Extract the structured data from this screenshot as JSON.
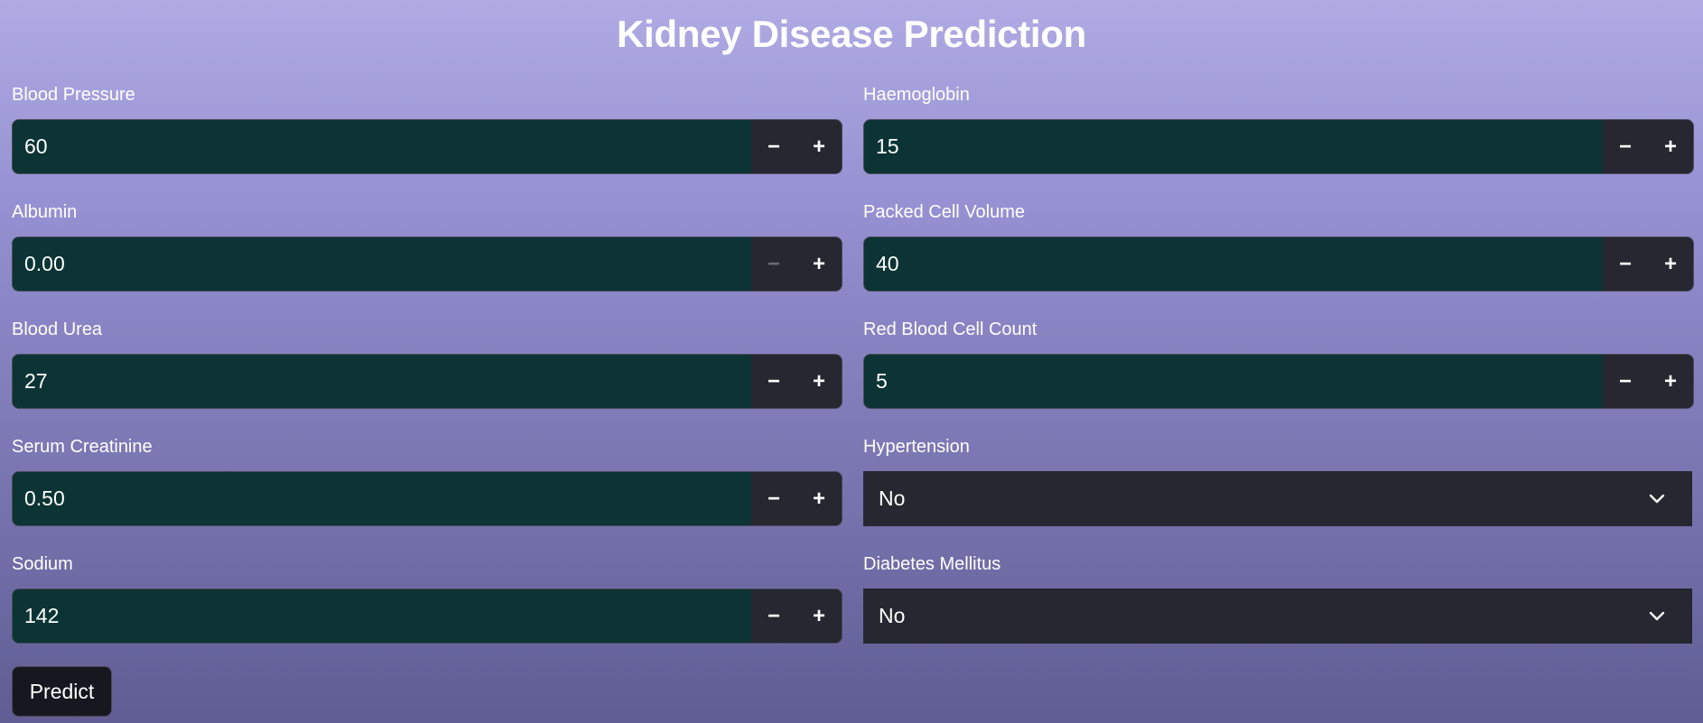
{
  "page": {
    "title": "Kidney Disease Prediction"
  },
  "left_fields": [
    {
      "label": "Blood Pressure",
      "value": "60"
    },
    {
      "label": "Albumin",
      "value": "0.00"
    },
    {
      "label": "Blood Urea",
      "value": "27"
    },
    {
      "label": "Serum Creatinine",
      "value": "0.50"
    },
    {
      "label": "Sodium",
      "value": "142"
    }
  ],
  "right_fields": [
    {
      "label": "Haemoglobin",
      "value": "15"
    },
    {
      "label": "Packed Cell Volume",
      "value": "40"
    },
    {
      "label": "Red Blood Cell Count",
      "value": "5"
    }
  ],
  "selects": [
    {
      "label": "Hypertension",
      "value": "No"
    },
    {
      "label": "Diabetes Mellitus",
      "value": "No"
    }
  ],
  "stepper": {
    "minus": "−",
    "plus": "+"
  },
  "actions": {
    "predict_label": "Predict"
  },
  "icons": {
    "dropdown": "chevron-down-icon"
  },
  "colors": {
    "input_bg": "#0c3434",
    "control_bg": "#262730",
    "button_bg": "#16171f",
    "background_top": "#b0abe3",
    "background_bottom": "#5f5d93"
  }
}
